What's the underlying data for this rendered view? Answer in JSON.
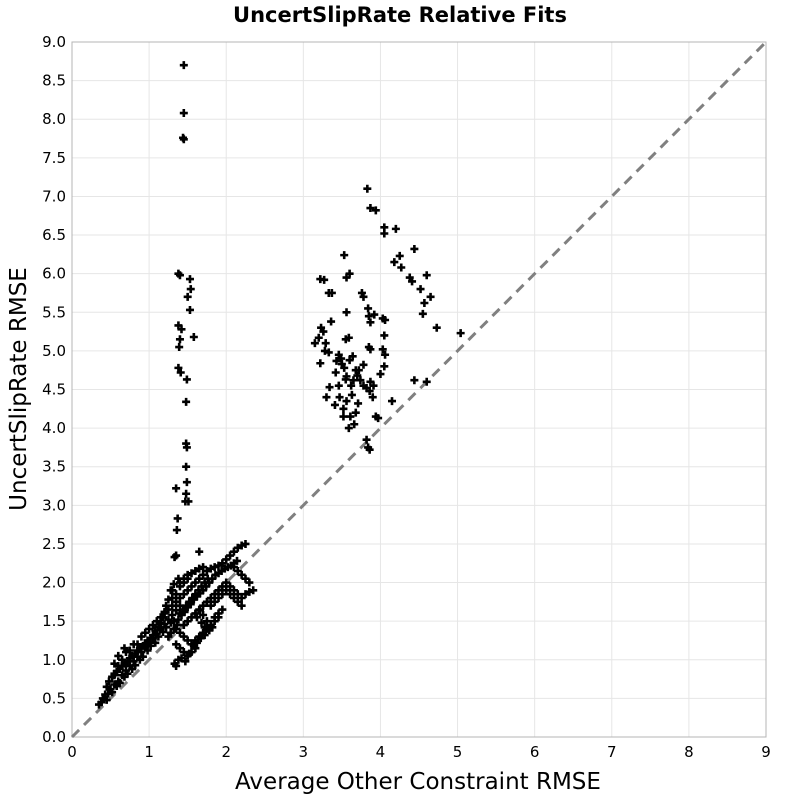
{
  "chart_data": {
    "type": "scatter",
    "title": "UncertSlipRate Relative Fits",
    "xlabel": "Average Other Constraint RMSE",
    "ylabel": "UncertSlipRate RMSE",
    "xlim": [
      0,
      9
    ],
    "ylim": [
      0,
      9
    ],
    "xticks": [
      "0",
      "1",
      "2",
      "3",
      "4",
      "5",
      "6",
      "7",
      "8",
      "9"
    ],
    "yticks": [
      "0.0",
      "0.5",
      "1.0",
      "1.5",
      "2.0",
      "2.5",
      "3.0",
      "3.5",
      "4.0",
      "4.5",
      "5.0",
      "5.5",
      "6.0",
      "6.5",
      "7.0",
      "7.5",
      "8.0",
      "8.5",
      "9.0"
    ],
    "grid": true,
    "reference_line": {
      "from": [
        0,
        0
      ],
      "to": [
        9,
        9
      ],
      "style": "dashed",
      "color": "#808080"
    },
    "marker": "+",
    "marker_color": "#000000",
    "points": [
      [
        1.45,
        8.7
      ],
      [
        1.45,
        8.08
      ],
      [
        1.44,
        7.76
      ],
      [
        1.45,
        7.74
      ],
      [
        1.38,
        6.0
      ],
      [
        1.4,
        5.98
      ],
      [
        1.53,
        5.93
      ],
      [
        1.5,
        5.7
      ],
      [
        1.54,
        5.8
      ],
      [
        1.53,
        5.53
      ],
      [
        1.38,
        5.33
      ],
      [
        1.42,
        5.28
      ],
      [
        1.4,
        5.15
      ],
      [
        1.39,
        5.05
      ],
      [
        1.58,
        5.18
      ],
      [
        1.38,
        4.78
      ],
      [
        1.41,
        4.72
      ],
      [
        1.49,
        4.63
      ],
      [
        1.48,
        4.34
      ],
      [
        1.48,
        3.8
      ],
      [
        1.49,
        3.75
      ],
      [
        1.48,
        3.5
      ],
      [
        1.49,
        3.3
      ],
      [
        1.35,
        3.22
      ],
      [
        1.48,
        3.15
      ],
      [
        1.47,
        3.05
      ],
      [
        1.51,
        3.05
      ],
      [
        1.37,
        2.83
      ],
      [
        1.36,
        2.68
      ],
      [
        1.35,
        2.35
      ],
      [
        1.33,
        2.33
      ],
      [
        1.65,
        2.4
      ],
      [
        3.83,
        7.1
      ],
      [
        3.87,
        6.85
      ],
      [
        3.94,
        6.82
      ],
      [
        4.05,
        6.6
      ],
      [
        4.05,
        6.52
      ],
      [
        4.2,
        6.58
      ],
      [
        4.25,
        6.23
      ],
      [
        4.18,
        6.15
      ],
      [
        4.44,
        6.32
      ],
      [
        4.27,
        6.08
      ],
      [
        4.38,
        5.95
      ],
      [
        4.41,
        5.9
      ],
      [
        4.6,
        5.98
      ],
      [
        4.52,
        5.8
      ],
      [
        4.57,
        5.62
      ],
      [
        4.65,
        5.7
      ],
      [
        4.55,
        5.48
      ],
      [
        4.73,
        5.3
      ],
      [
        5.04,
        5.23
      ],
      [
        3.53,
        6.24
      ],
      [
        3.6,
        6.0
      ],
      [
        3.56,
        5.95
      ],
      [
        3.22,
        5.93
      ],
      [
        3.27,
        5.92
      ],
      [
        3.33,
        5.75
      ],
      [
        3.37,
        5.75
      ],
      [
        3.76,
        5.75
      ],
      [
        3.78,
        5.7
      ],
      [
        3.84,
        5.55
      ],
      [
        3.92,
        5.47
      ],
      [
        3.85,
        5.45
      ],
      [
        3.87,
        5.37
      ],
      [
        4.03,
        5.42
      ],
      [
        4.06,
        5.4
      ],
      [
        3.56,
        5.5
      ],
      [
        3.36,
        5.38
      ],
      [
        3.23,
        5.3
      ],
      [
        3.26,
        5.25
      ],
      [
        3.2,
        5.17
      ],
      [
        3.29,
        5.1
      ],
      [
        3.15,
        5.1
      ],
      [
        3.28,
        5.0
      ],
      [
        3.33,
        4.98
      ],
      [
        3.59,
        5.17
      ],
      [
        3.55,
        5.15
      ],
      [
        4.05,
        5.2
      ],
      [
        3.85,
        5.05
      ],
      [
        3.87,
        5.02
      ],
      [
        4.03,
        5.02
      ],
      [
        4.06,
        4.95
      ],
      [
        3.46,
        4.95
      ],
      [
        3.49,
        4.9
      ],
      [
        3.43,
        4.87
      ],
      [
        3.6,
        4.88
      ],
      [
        3.64,
        4.93
      ],
      [
        3.5,
        4.83
      ],
      [
        3.22,
        4.84
      ],
      [
        4.05,
        4.8
      ],
      [
        4.0,
        4.7
      ],
      [
        3.78,
        4.82
      ],
      [
        3.72,
        4.75
      ],
      [
        3.68,
        4.75
      ],
      [
        3.7,
        4.68
      ],
      [
        3.74,
        4.62
      ],
      [
        3.53,
        4.78
      ],
      [
        3.56,
        4.67
      ],
      [
        3.55,
        4.63
      ],
      [
        3.42,
        4.72
      ],
      [
        3.65,
        4.62
      ],
      [
        3.62,
        4.55
      ],
      [
        3.78,
        4.55
      ],
      [
        3.82,
        4.52
      ],
      [
        3.86,
        4.48
      ],
      [
        3.91,
        4.55
      ],
      [
        3.87,
        4.6
      ],
      [
        3.46,
        4.55
      ],
      [
        3.34,
        4.53
      ],
      [
        3.3,
        4.4
      ],
      [
        3.41,
        4.3
      ],
      [
        3.47,
        4.4
      ],
      [
        3.56,
        4.35
      ],
      [
        3.63,
        4.43
      ],
      [
        3.71,
        4.32
      ],
      [
        3.68,
        4.2
      ],
      [
        3.9,
        4.4
      ],
      [
        3.94,
        4.15
      ],
      [
        3.97,
        4.13
      ],
      [
        3.52,
        4.15
      ],
      [
        3.61,
        4.15
      ],
      [
        3.59,
        4.0
      ],
      [
        3.66,
        4.05
      ],
      [
        3.52,
        4.25
      ],
      [
        3.82,
        3.85
      ],
      [
        3.84,
        3.75
      ],
      [
        3.86,
        3.72
      ],
      [
        4.15,
        4.35
      ],
      [
        4.44,
        4.62
      ],
      [
        4.6,
        4.6
      ],
      [
        0.35,
        0.42
      ],
      [
        0.38,
        0.45
      ],
      [
        0.4,
        0.5
      ],
      [
        0.43,
        0.55
      ],
      [
        0.47,
        0.56
      ],
      [
        0.5,
        0.62
      ],
      [
        0.55,
        0.68
      ],
      [
        0.6,
        0.72
      ],
      [
        0.65,
        0.8
      ],
      [
        0.7,
        0.86
      ],
      [
        0.75,
        0.92
      ],
      [
        0.8,
        0.98
      ],
      [
        0.85,
        1.04
      ],
      [
        0.9,
        1.1
      ],
      [
        0.95,
        1.16
      ],
      [
        1.0,
        1.22
      ],
      [
        1.05,
        1.28
      ],
      [
        1.1,
        1.34
      ],
      [
        1.15,
        1.4
      ],
      [
        1.2,
        1.46
      ],
      [
        1.25,
        1.52
      ],
      [
        1.3,
        1.58
      ],
      [
        1.35,
        1.64
      ],
      [
        1.4,
        1.7
      ],
      [
        0.45,
        0.48
      ],
      [
        0.52,
        0.58
      ],
      [
        0.58,
        0.66
      ],
      [
        0.62,
        0.7
      ],
      [
        0.68,
        0.78
      ],
      [
        0.72,
        0.82
      ],
      [
        0.78,
        0.88
      ],
      [
        0.82,
        0.93
      ],
      [
        0.88,
        1.0
      ],
      [
        0.92,
        1.04
      ],
      [
        0.98,
        1.12
      ],
      [
        1.02,
        1.18
      ],
      [
        1.08,
        1.22
      ],
      [
        1.12,
        1.3
      ],
      [
        1.18,
        1.36
      ],
      [
        1.22,
        1.42
      ],
      [
        1.28,
        1.48
      ],
      [
        1.32,
        1.5
      ],
      [
        0.55,
        0.8
      ],
      [
        0.6,
        0.92
      ],
      [
        0.65,
        1.0
      ],
      [
        0.7,
        1.1
      ],
      [
        0.75,
        1.12
      ],
      [
        0.8,
        1.2
      ],
      [
        0.6,
        1.05
      ],
      [
        0.55,
        0.95
      ],
      [
        0.68,
        1.15
      ],
      [
        0.85,
        1.2
      ],
      [
        0.9,
        1.3
      ],
      [
        0.95,
        1.35
      ],
      [
        1.0,
        1.4
      ],
      [
        1.05,
        1.45
      ],
      [
        1.1,
        1.5
      ],
      [
        1.15,
        1.55
      ],
      [
        1.2,
        1.6
      ],
      [
        1.25,
        1.65
      ],
      [
        1.3,
        1.7
      ],
      [
        1.35,
        1.75
      ],
      [
        1.4,
        1.8
      ],
      [
        1.45,
        1.85
      ],
      [
        1.5,
        1.9
      ],
      [
        1.55,
        1.95
      ],
      [
        1.6,
        2.0
      ],
      [
        1.65,
        2.05
      ],
      [
        1.7,
        2.1
      ],
      [
        1.75,
        2.15
      ],
      [
        1.8,
        2.18
      ],
      [
        1.85,
        2.2
      ],
      [
        1.9,
        2.22
      ],
      [
        1.95,
        2.25
      ],
      [
        2.0,
        2.3
      ],
      [
        2.05,
        2.35
      ],
      [
        2.1,
        2.4
      ],
      [
        2.15,
        2.45
      ],
      [
        2.2,
        2.48
      ],
      [
        2.25,
        2.5
      ],
      [
        1.3,
        1.8
      ],
      [
        1.35,
        1.85
      ],
      [
        1.3,
        1.9
      ],
      [
        1.4,
        2.0
      ],
      [
        1.45,
        2.05
      ],
      [
        1.5,
        2.1
      ],
      [
        1.55,
        2.12
      ],
      [
        1.6,
        2.15
      ],
      [
        1.65,
        2.18
      ],
      [
        1.7,
        2.2
      ],
      [
        1.45,
        1.45
      ],
      [
        1.5,
        1.5
      ],
      [
        1.55,
        1.55
      ],
      [
        1.6,
        1.6
      ],
      [
        1.65,
        1.65
      ],
      [
        1.7,
        1.7
      ],
      [
        1.75,
        1.75
      ],
      [
        1.8,
        1.8
      ],
      [
        1.85,
        1.85
      ],
      [
        1.9,
        1.9
      ],
      [
        1.95,
        1.95
      ],
      [
        2.0,
        2.0
      ],
      [
        2.05,
        1.95
      ],
      [
        2.1,
        1.9
      ],
      [
        2.15,
        1.85
      ],
      [
        2.2,
        1.8
      ],
      [
        2.25,
        1.85
      ],
      [
        2.3,
        1.88
      ],
      [
        2.35,
        1.9
      ],
      [
        2.3,
        2.0
      ],
      [
        2.25,
        2.05
      ],
      [
        2.2,
        2.1
      ],
      [
        2.15,
        2.15
      ],
      [
        2.1,
        2.2
      ],
      [
        1.35,
        1.4
      ],
      [
        1.4,
        1.35
      ],
      [
        1.45,
        1.3
      ],
      [
        1.5,
        1.25
      ],
      [
        1.55,
        1.2
      ],
      [
        1.6,
        1.25
      ],
      [
        1.65,
        1.3
      ],
      [
        1.7,
        1.35
      ],
      [
        1.75,
        1.4
      ],
      [
        1.8,
        1.45
      ],
      [
        1.85,
        1.5
      ],
      [
        1.9,
        1.55
      ],
      [
        1.35,
        1.2
      ],
      [
        1.4,
        1.15
      ],
      [
        1.45,
        1.1
      ],
      [
        1.5,
        1.05
      ],
      [
        1.55,
        1.1
      ],
      [
        1.6,
        1.15
      ],
      [
        1.33,
        0.95
      ],
      [
        1.35,
        0.92
      ],
      [
        1.38,
        1.0
      ],
      [
        1.42,
        1.02
      ],
      [
        1.47,
        0.98
      ],
      [
        1.52,
        1.08
      ],
      [
        1.58,
        1.18
      ],
      [
        1.62,
        1.22
      ],
      [
        1.67,
        1.28
      ],
      [
        1.72,
        1.32
      ],
      [
        1.78,
        1.38
      ],
      [
        1.82,
        1.42
      ],
      [
        1.25,
        1.3
      ],
      [
        1.28,
        1.35
      ],
      [
        1.32,
        1.4
      ],
      [
        1.36,
        1.45
      ],
      [
        1.38,
        1.52
      ],
      [
        1.42,
        1.58
      ],
      [
        1.46,
        1.62
      ],
      [
        1.5,
        1.68
      ],
      [
        1.54,
        1.72
      ],
      [
        1.58,
        1.78
      ],
      [
        1.62,
        1.82
      ],
      [
        1.66,
        1.86
      ],
      [
        1.7,
        1.9
      ],
      [
        1.74,
        1.95
      ],
      [
        1.78,
        2.0
      ],
      [
        1.82,
        2.05
      ],
      [
        1.86,
        2.1
      ],
      [
        1.9,
        2.12
      ],
      [
        1.94,
        2.15
      ],
      [
        1.98,
        2.18
      ],
      [
        2.02,
        2.2
      ],
      [
        2.06,
        2.22
      ],
      [
        2.1,
        2.25
      ],
      [
        2.14,
        2.28
      ],
      [
        1.4,
        1.6
      ],
      [
        1.44,
        1.65
      ],
      [
        1.48,
        1.7
      ],
      [
        1.52,
        1.75
      ],
      [
        1.56,
        1.8
      ],
      [
        1.6,
        1.85
      ],
      [
        1.64,
        1.9
      ],
      [
        1.68,
        1.95
      ],
      [
        1.72,
        2.0
      ],
      [
        1.76,
        2.05
      ],
      [
        1.4,
        1.95
      ],
      [
        1.45,
        2.0
      ],
      [
        1.5,
        2.05
      ],
      [
        1.38,
        2.05
      ],
      [
        1.32,
        1.98
      ],
      [
        1.28,
        1.9
      ],
      [
        1.25,
        1.78
      ],
      [
        1.22,
        1.7
      ],
      [
        1.2,
        1.62
      ],
      [
        1.18,
        1.55
      ],
      [
        1.15,
        1.48
      ],
      [
        1.12,
        1.42
      ],
      [
        1.08,
        1.38
      ],
      [
        1.05,
        1.32
      ],
      [
        1.02,
        1.28
      ],
      [
        0.98,
        1.25
      ],
      [
        0.95,
        1.2
      ],
      [
        0.92,
        1.18
      ],
      [
        0.88,
        1.15
      ],
      [
        0.85,
        1.12
      ],
      [
        0.82,
        1.08
      ],
      [
        0.78,
        1.05
      ],
      [
        0.75,
        1.02
      ],
      [
        0.72,
        0.98
      ],
      [
        0.68,
        0.95
      ],
      [
        0.65,
        0.92
      ],
      [
        0.62,
        0.88
      ],
      [
        0.58,
        0.85
      ],
      [
        0.55,
        0.82
      ],
      [
        0.52,
        0.78
      ],
      [
        0.48,
        0.72
      ],
      [
        0.45,
        0.65
      ],
      [
        1.8,
        1.7
      ],
      [
        1.85,
        1.75
      ],
      [
        1.9,
        1.8
      ],
      [
        1.95,
        1.85
      ],
      [
        2.0,
        1.9
      ],
      [
        2.05,
        1.85
      ],
      [
        2.1,
        1.8
      ],
      [
        2.15,
        1.75
      ],
      [
        2.2,
        1.7
      ],
      [
        1.95,
        1.65
      ],
      [
        1.9,
        1.6
      ],
      [
        1.85,
        1.55
      ],
      [
        1.62,
        1.55
      ],
      [
        1.68,
        1.48
      ],
      [
        1.72,
        1.42
      ],
      [
        1.75,
        1.5
      ],
      [
        1.7,
        1.58
      ],
      [
        1.66,
        1.64
      ]
    ]
  }
}
